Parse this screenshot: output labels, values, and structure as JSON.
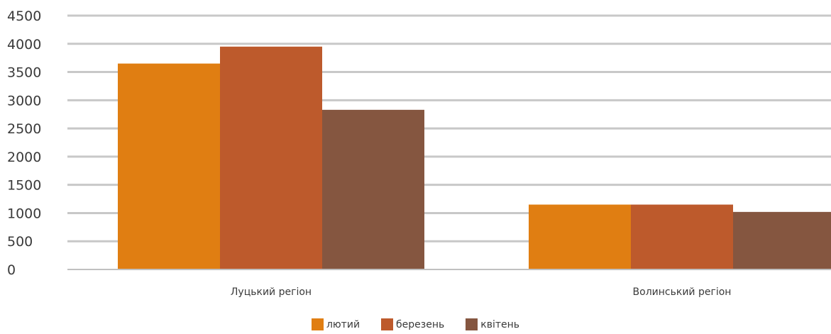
{
  "chart_data": {
    "type": "bar",
    "title": "",
    "xlabel": "",
    "ylabel": "",
    "categories": [
      "Луцький регіон",
      "Волинський регіон"
    ],
    "series": [
      {
        "name": "лютий",
        "values": [
          3650,
          1150
        ],
        "color": "#E07E12"
      },
      {
        "name": "березень",
        "values": [
          3950,
          1150
        ],
        "color": "#BD5A2C"
      },
      {
        "name": "квітень",
        "values": [
          2830,
          1020
        ],
        "color": "#855640"
      }
    ],
    "ylim": [
      0,
      4500
    ],
    "yticks": [
      0,
      500,
      1000,
      1500,
      2000,
      2500,
      3000,
      3500,
      4000,
      4500
    ],
    "grid": true,
    "legend_position": "bottom"
  }
}
